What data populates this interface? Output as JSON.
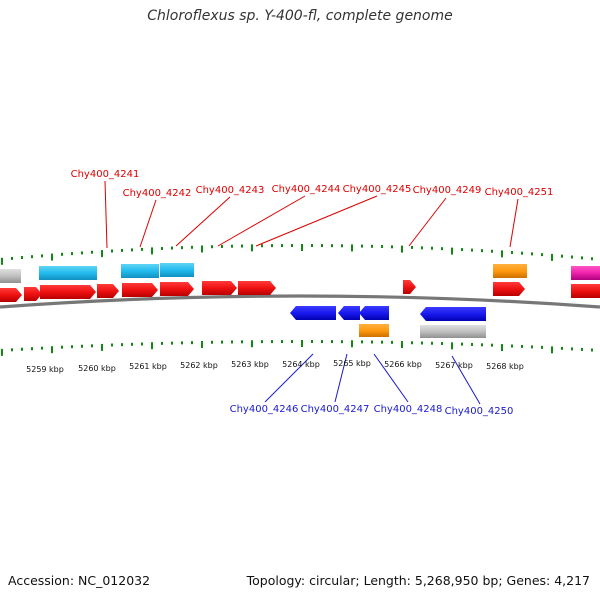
{
  "header": {
    "title": "Chloroflexus sp. Y-400-fl, complete genome"
  },
  "footer": {
    "accession": "Accession: NC_012032",
    "summary": "Topology: circular; Length: 5,268,950 bp; Genes: 4,217"
  },
  "map": {
    "kbp_labels": [
      "5259 kbp",
      "5260 kbp",
      "5261 kbp",
      "5262 kbp",
      "5263 kbp",
      "5264 kbp",
      "5265 kbp",
      "5266 kbp",
      "5267 kbp",
      "5268 kbp"
    ],
    "top_gene_labels": [
      "Chy400_4241",
      "Chy400_4242",
      "Chy400_4243",
      "Chy400_4244",
      "Chy400_4245",
      "Chy400_4249",
      "Chy400_4251"
    ],
    "bottom_gene_labels": [
      "Chy400_4246",
      "Chy400_4247",
      "Chy400_4248",
      "Chy400_4250"
    ],
    "colors": {
      "forward_cds": "#ee1111",
      "reverse_cds": "#1a1aee",
      "cyan": "#22bbee",
      "orange": "#ff9910",
      "gray": "#c0c0c0",
      "magenta": "#ee22aa",
      "ticks": "#118811",
      "backbone": "#777777",
      "top_label": "#dd0000",
      "bottom_label": "#1a1acc"
    }
  }
}
